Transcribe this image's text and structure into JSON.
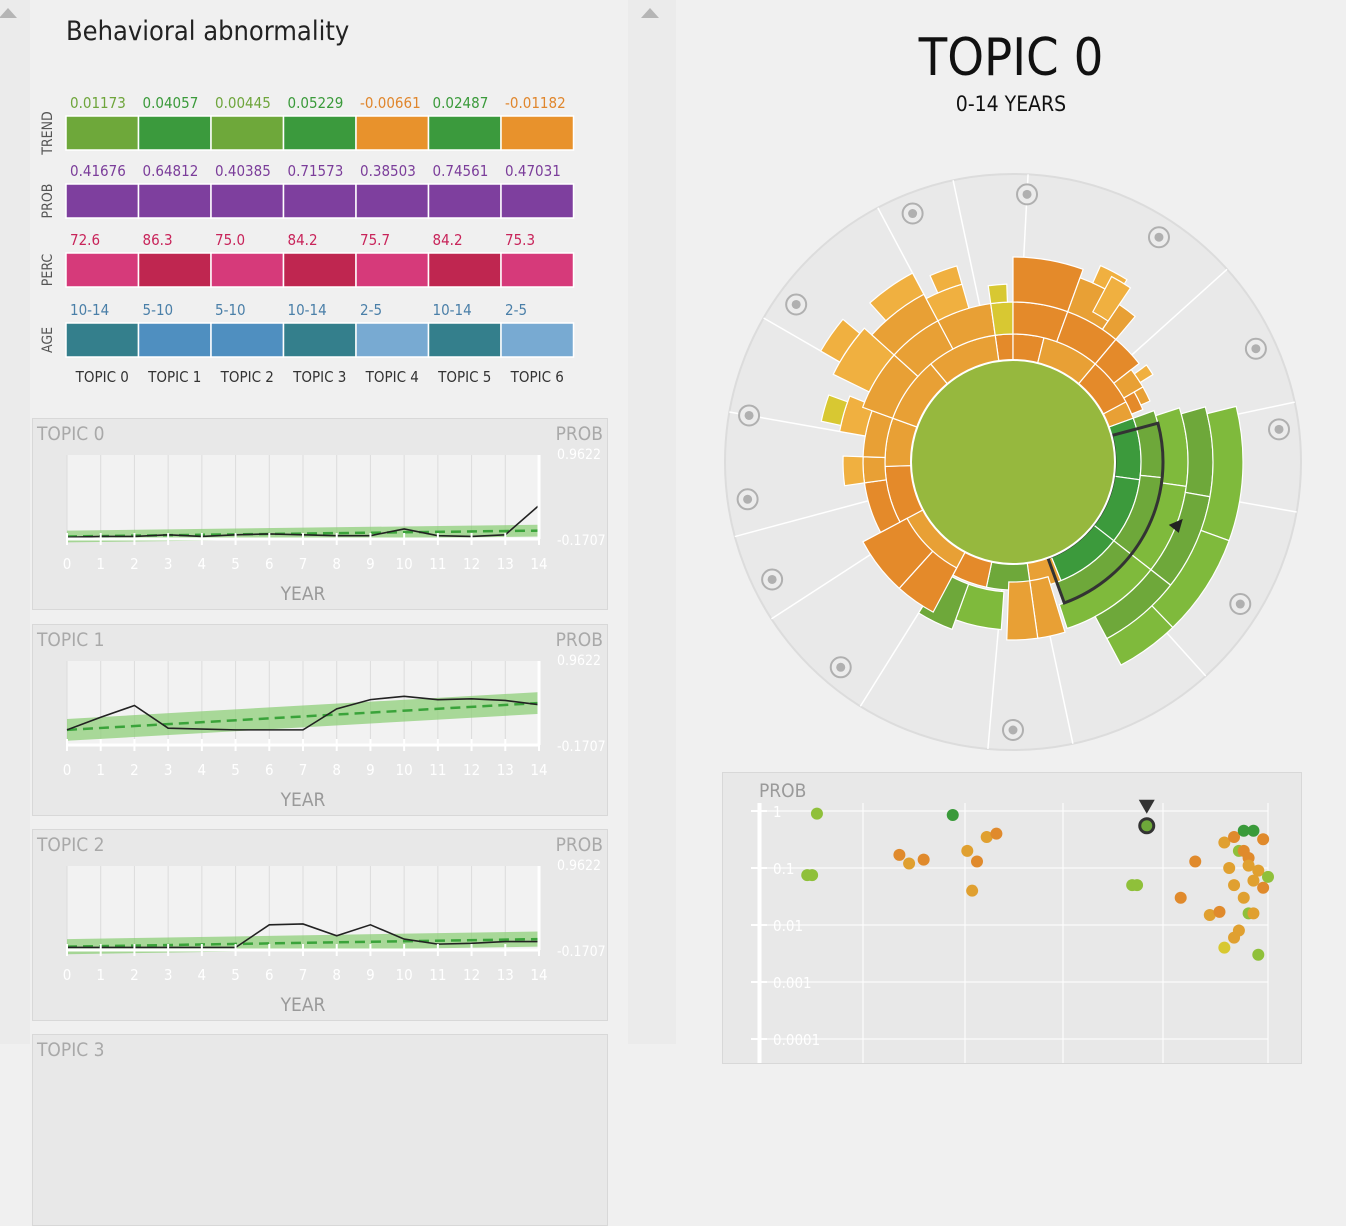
{
  "left": {
    "title": "Behavioral abnormality",
    "rows": [
      {
        "label": "TREND",
        "values": [
          "0.01173",
          "0.04057",
          "0.00445",
          "0.05229",
          "-0.00661",
          "0.02487",
          "-0.01182"
        ],
        "text_colors": [
          "#6ea53b",
          "#3a9a3a",
          "#6ea53b",
          "#3a9a3a",
          "#e0862c",
          "#3a9a3a",
          "#e0862c"
        ],
        "colors": [
          "#6ea83a",
          "#3b9a3d",
          "#6ea83a",
          "#3b9a3d",
          "#e8922c",
          "#3b9a3d",
          "#e8922c"
        ]
      },
      {
        "label": "PROB",
        "values": [
          "0.41676",
          "0.64812",
          "0.40385",
          "0.71573",
          "0.38503",
          "0.74561",
          "0.47031"
        ],
        "text_colors": [
          "#7b3d9a",
          "#7b3d9a",
          "#7b3d9a",
          "#7b3d9a",
          "#7b3d9a",
          "#7b3d9a",
          "#7b3d9a"
        ],
        "colors": [
          "#7e3f9e",
          "#7e3f9e",
          "#7e3f9e",
          "#7e3f9e",
          "#7e3f9e",
          "#7e3f9e",
          "#7e3f9e"
        ]
      },
      {
        "label": "PERC",
        "values": [
          "72.6",
          "86.3",
          "75.0",
          "84.2",
          "75.7",
          "84.2",
          "75.3"
        ],
        "text_colors": [
          "#c8245a",
          "#c8245a",
          "#c8245a",
          "#c8245a",
          "#c8245a",
          "#c8245a",
          "#c8245a"
        ],
        "colors": [
          "#d63a7a",
          "#bf2650",
          "#d63a7a",
          "#bf2650",
          "#d63a7a",
          "#bf2650",
          "#d63a7a"
        ]
      },
      {
        "label": "AGE",
        "values": [
          "10-14",
          "5-10",
          "5-10",
          "10-14",
          "2-5",
          "10-14",
          "2-5"
        ],
        "text_colors": [
          "#4a7fa8",
          "#4a7fa8",
          "#4a7fa8",
          "#4a7fa8",
          "#4a7fa8",
          "#4a7fa8",
          "#4a7fa8"
        ],
        "colors": [
          "#347f8c",
          "#4f8fc0",
          "#4f8fc0",
          "#347f8c",
          "#78aad2",
          "#347f8c",
          "#78aad2"
        ]
      }
    ],
    "topics": [
      "TOPIC 0",
      "TOPIC 1",
      "TOPIC 2",
      "TOPIC 3",
      "TOPIC 4",
      "TOPIC 5",
      "TOPIC 6"
    ],
    "mini_charts": [
      {
        "title": "TOPIC 0",
        "prob_label": "PROB",
        "ymax": "0.9622",
        "ymin": "-0.1707",
        "xlabel": "YEAR",
        "x_ticks": [
          "0",
          "1",
          "2",
          "3",
          "4",
          "5",
          "6",
          "7",
          "8",
          "9",
          "10",
          "11",
          "12",
          "13",
          "14"
        ],
        "line": [
          0.02,
          0.03,
          0.03,
          0.05,
          0.03,
          0.05,
          0.06,
          0.05,
          0.04,
          0.04,
          0.12,
          0.04,
          0.03,
          0.05,
          0.4
        ],
        "trend": [
          0.03,
          0.1
        ],
        "band": 0.07
      },
      {
        "title": "TOPIC 1",
        "prob_label": "PROB",
        "ymax": "0.9622",
        "ymin": "-0.1707",
        "xlabel": "YEAR",
        "x_ticks": [
          "0",
          "1",
          "2",
          "3",
          "4",
          "5",
          "6",
          "7",
          "8",
          "9",
          "10",
          "11",
          "12",
          "13",
          "14"
        ],
        "line": [
          0.18,
          0.33,
          0.47,
          0.2,
          0.19,
          0.18,
          0.18,
          0.18,
          0.43,
          0.54,
          0.58,
          0.54,
          0.55,
          0.53,
          0.48
        ],
        "trend": [
          0.18,
          0.5
        ],
        "band": 0.13
      },
      {
        "title": "TOPIC 2",
        "prob_label": "PROB",
        "ymax": "0.9622",
        "ymin": "-0.1707",
        "xlabel": "YEAR",
        "x_ticks": [
          "0",
          "1",
          "2",
          "3",
          "4",
          "5",
          "6",
          "7",
          "8",
          "9",
          "10",
          "11",
          "12",
          "13",
          "14"
        ],
        "line": [
          0.03,
          0.03,
          0.03,
          0.03,
          0.03,
          0.03,
          0.3,
          0.31,
          0.17,
          0.3,
          0.13,
          0.07,
          0.08,
          0.1,
          0.1
        ],
        "trend": [
          0.04,
          0.13
        ],
        "band": 0.09
      }
    ],
    "next_card_title": "TOPIC 3",
    "colors": {
      "band": "#8fcf7a",
      "trend_line": "#3aa33a",
      "data_line": "#222222",
      "axis": "#ffffff"
    }
  },
  "right": {
    "title": "TOPIC 0",
    "subtitle": "0-14 YEARS",
    "icons": [
      "head-icon",
      "eye-icon",
      "sun-icon",
      "ear-icon",
      "heart-icon",
      "hand-icon",
      "face-icon",
      "moon-icon",
      "leaf-icon",
      "star-icon",
      "brain-icon"
    ],
    "scatter": {
      "ylabel": "PROB",
      "y_ticks": [
        "1",
        "0.1",
        "0.01",
        "0.001",
        "0.0001"
      ],
      "points": [
        {
          "x": 0.05,
          "p": 0.075,
          "c": "#8fc03a"
        },
        {
          "x": 0.07,
          "p": 0.9,
          "c": "#8fc03a"
        },
        {
          "x": 0.06,
          "p": 0.075,
          "c": "#8fc03a"
        },
        {
          "x": 0.24,
          "p": 0.17,
          "c": "#e08a2c"
        },
        {
          "x": 0.26,
          "p": 0.12,
          "c": "#e0a030"
        },
        {
          "x": 0.29,
          "p": 0.14,
          "c": "#e08a2c"
        },
        {
          "x": 0.35,
          "p": 0.85,
          "c": "#3a9a3a"
        },
        {
          "x": 0.38,
          "p": 0.2,
          "c": "#e0a030"
        },
        {
          "x": 0.4,
          "p": 0.13,
          "c": "#e08a2c"
        },
        {
          "x": 0.39,
          "p": 0.04,
          "c": "#e0a030"
        },
        {
          "x": 0.42,
          "p": 0.35,
          "c": "#e0a030"
        },
        {
          "x": 0.44,
          "p": 0.4,
          "c": "#e08a2c"
        },
        {
          "x": 0.72,
          "p": 0.05,
          "c": "#8fc03a"
        },
        {
          "x": 0.73,
          "p": 0.05,
          "c": "#8fc03a"
        },
        {
          "x": 0.75,
          "p": 0.55,
          "c": "#3a7a3a"
        },
        {
          "x": 0.82,
          "p": 0.03,
          "c": "#e08a2c"
        },
        {
          "x": 0.85,
          "p": 0.13,
          "c": "#e08a2c"
        },
        {
          "x": 0.88,
          "p": 0.015,
          "c": "#e0a030"
        },
        {
          "x": 0.9,
          "p": 0.017,
          "c": "#e08a2c"
        },
        {
          "x": 0.91,
          "p": 0.28,
          "c": "#e0a030"
        },
        {
          "x": 0.93,
          "p": 0.35,
          "c": "#e08a2c"
        },
        {
          "x": 0.95,
          "p": 0.45,
          "c": "#3a9a3a"
        },
        {
          "x": 0.97,
          "p": 0.45,
          "c": "#3a9a3a"
        },
        {
          "x": 0.99,
          "p": 0.32,
          "c": "#e08a2c"
        },
        {
          "x": 0.92,
          "p": 0.1,
          "c": "#e0a030"
        },
        {
          "x": 0.94,
          "p": 0.2,
          "c": "#8fc03a"
        },
        {
          "x": 0.96,
          "p": 0.15,
          "c": "#e08a2c"
        },
        {
          "x": 0.93,
          "p": 0.05,
          "c": "#e0a030"
        },
        {
          "x": 0.95,
          "p": 0.03,
          "c": "#e0a030"
        },
        {
          "x": 0.97,
          "p": 0.06,
          "c": "#e0a030"
        },
        {
          "x": 0.98,
          "p": 0.09,
          "c": "#e0a030"
        },
        {
          "x": 1.0,
          "p": 0.07,
          "c": "#8fc03a"
        },
        {
          "x": 0.96,
          "p": 0.016,
          "c": "#8fc03a"
        },
        {
          "x": 0.94,
          "p": 0.008,
          "c": "#e0a030"
        },
        {
          "x": 0.97,
          "p": 0.016,
          "c": "#e0a030"
        },
        {
          "x": 0.99,
          "p": 0.045,
          "c": "#e08a2c"
        },
        {
          "x": 0.91,
          "p": 0.004,
          "c": "#d8c830"
        },
        {
          "x": 0.93,
          "p": 0.006,
          "c": "#e0a030"
        },
        {
          "x": 0.98,
          "p": 0.003,
          "c": "#8fc03a"
        },
        {
          "x": 0.95,
          "p": 0.2,
          "c": "#e08a2c"
        },
        {
          "x": 0.96,
          "p": 0.11,
          "c": "#e0a030"
        }
      ]
    }
  }
}
